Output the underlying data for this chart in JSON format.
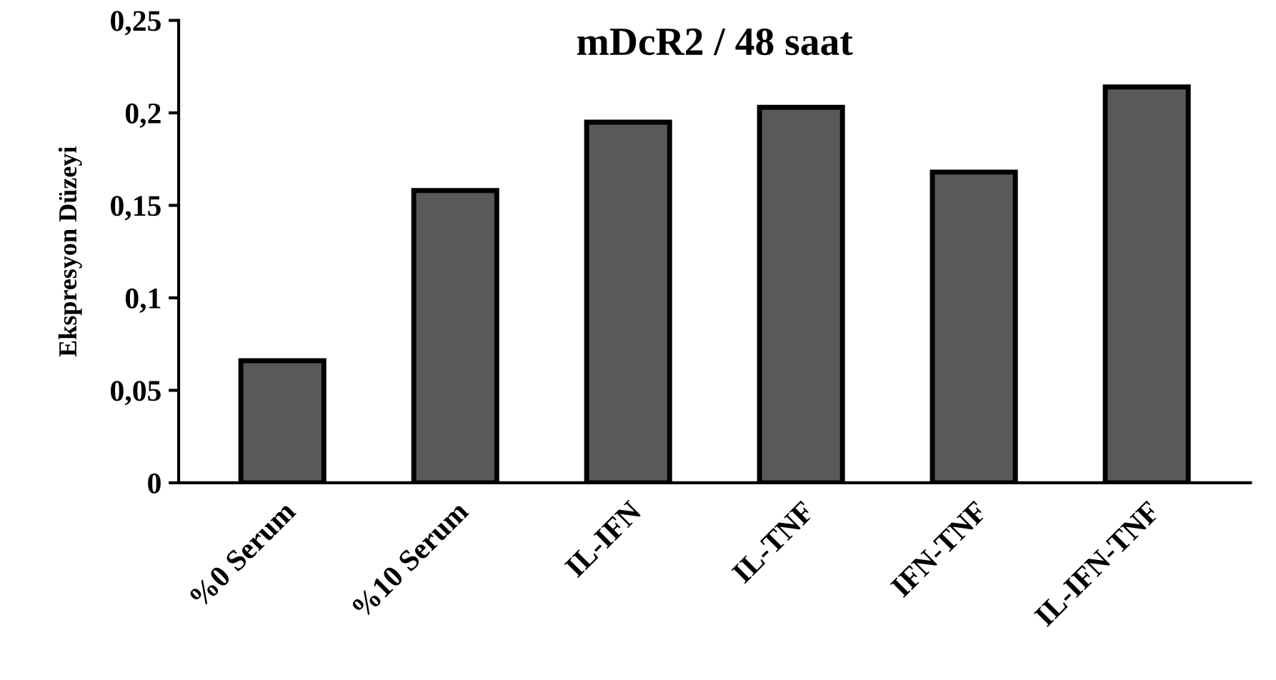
{
  "chart_data": {
    "type": "bar",
    "title": "mDcR2 / 48 saat",
    "ylabel": "Ekspresyon Düzeyi",
    "categories": [
      "%0 Serum",
      "%10 Serum",
      "IL-IFN",
      "IL-TNF",
      "IFN-TNF",
      "IL-IFN-TNF"
    ],
    "values": [
      0.066,
      0.158,
      0.195,
      0.203,
      0.168,
      0.214
    ],
    "color": "#595959",
    "ylim": [
      0,
      0.25
    ],
    "yticks": [
      {
        "value": 0,
        "label": "0"
      },
      {
        "value": 0.05,
        "label": "0,05"
      },
      {
        "value": 0.1,
        "label": "0,1"
      },
      {
        "value": 0.15,
        "label": "0,15"
      },
      {
        "value": 0.2,
        "label": "0,2"
      },
      {
        "value": 0.25,
        "label": "0,25"
      }
    ],
    "grid": false,
    "legend": false
  }
}
